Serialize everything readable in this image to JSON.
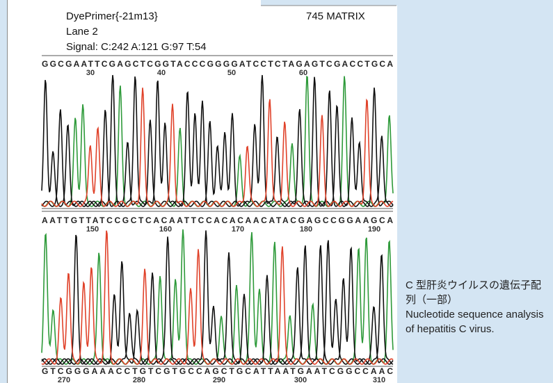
{
  "header": {
    "primer": "DyePrimer{-21m13}",
    "lane": "Lane 2",
    "signal": "Signal: C:242 A:121 G:97 T:54",
    "matrix": "745 MATRIX"
  },
  "rows": [
    {
      "sequence": "GGCGAATTCGAGCTCGGTACCCGGGGATCCTCTAGAGTCGACCTGCA",
      "positions": [
        30,
        40,
        50,
        60
      ]
    },
    {
      "sequence": "AATTGTTATCCGCTCACAATTCCACACAACATACGAGCCGGAAGCA",
      "positions": [
        150,
        160,
        170,
        180,
        190
      ]
    },
    {
      "sequence": "GTCGGGAAACCTGTCGTGCCAGCTGCATTAATGAATCGGCCAAC",
      "positions": [
        270,
        280,
        290,
        300,
        310
      ]
    }
  ],
  "caption": {
    "japanese": "C 型肝炎ウイルスの遺伝子配列（一部）",
    "english": "Nucleotide sequence analysis of hepatitis C virus."
  }
}
